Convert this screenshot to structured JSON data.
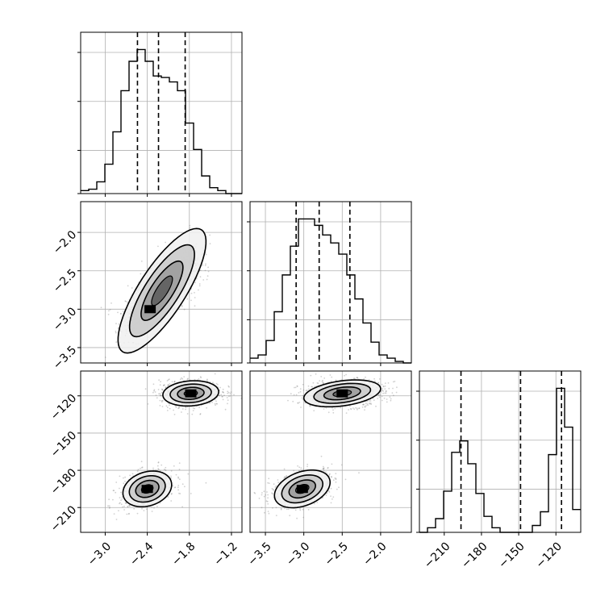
{
  "chart_data": {
    "type": "corner",
    "title": "",
    "parameters": [
      {
        "label": "",
        "range": [
          -3.35,
          -1.05
        ],
        "ticks": [
          -3.0,
          -2.4,
          -1.8,
          -1.2
        ],
        "tick_labels": [
          "−3.0",
          "−2.4",
          "−1.8",
          "−1.2"
        ],
        "quantiles": [
          -2.54,
          -2.24,
          -1.86
        ],
        "hist": {
          "bin_edges": [
            -3.35,
            -3.235,
            -3.12,
            -3.005,
            -2.89,
            -2.775,
            -2.66,
            -2.545,
            -2.43,
            -2.315,
            -2.2,
            -2.085,
            -1.97,
            -1.855,
            -1.74,
            -1.625,
            -1.51,
            -1.395,
            -1.28,
            -1.165,
            -1.05
          ],
          "counts": [
            2,
            3,
            8,
            20,
            42,
            70,
            90,
            98,
            90,
            80,
            79,
            76,
            70,
            48,
            30,
            12,
            4,
            2,
            0,
            0
          ]
        }
      },
      {
        "label": "",
        "range": [
          -3.7,
          -1.6
        ],
        "ticks": [
          -3.5,
          -3.0,
          -2.5,
          -2.0
        ],
        "tick_labels": [
          "−3.5",
          "−3.0",
          "−2.5",
          "−2.0"
        ],
        "quantiles": [
          -3.1,
          -2.8,
          -2.4
        ],
        "hist": {
          "bin_edges": [
            -3.7,
            -3.595,
            -3.49,
            -3.385,
            -3.28,
            -3.175,
            -3.07,
            -2.965,
            -2.86,
            -2.755,
            -2.65,
            -2.545,
            -2.44,
            -2.335,
            -2.23,
            -2.125,
            -2.02,
            -1.915,
            -1.81,
            -1.705,
            -1.6
          ],
          "counts": [
            3,
            5,
            14,
            32,
            55,
            73,
            90,
            90,
            86,
            80,
            75,
            68,
            55,
            40,
            25,
            13,
            5,
            3,
            1,
            0
          ]
        }
      },
      {
        "label": "",
        "range": [
          -230,
          -100
        ],
        "ticks": [
          -210,
          -180,
          -150,
          -120
        ],
        "tick_labels": [
          "−210",
          "−180",
          "−150",
          "−120"
        ],
        "quantiles": [
          -196.5,
          -148.5,
          -115.5
        ],
        "hist": {
          "bin_edges": [
            -230,
            -223.5,
            -217,
            -210.5,
            -204,
            -197.5,
            -191,
            -184.5,
            -178,
            -171.5,
            -165,
            -158.5,
            -152,
            -145.5,
            -139,
            -132.5,
            -126,
            -119.5,
            -113,
            -106.5,
            -100
          ],
          "counts": [
            0,
            2,
            6,
            18,
            35,
            40,
            30,
            17,
            7,
            2,
            0,
            0,
            0,
            0,
            3,
            9,
            34,
            63,
            46,
            10
          ]
        }
      }
    ],
    "pairs": [
      {
        "x_param": 0,
        "y_param": 1,
        "clusters": [
          {
            "x": [
              -2.36,
              -2.02
            ],
            "y": [
              -3.0,
              -2.52
            ],
            "sx": 0.2,
            "sy": 0.18,
            "corr": 0.62,
            "weight": 1.0
          }
        ]
      },
      {
        "x_param": 0,
        "y_param": 2,
        "clusters": [
          {
            "x": [
              -1.78
            ],
            "y": [
              -118
            ],
            "sx": 0.19,
            "sy": 4.8,
            "corr": 0.08,
            "weight": 0.55
          },
          {
            "x": [
              -2.4
            ],
            "y": [
              -195
            ],
            "sx": 0.17,
            "sy": 6.5,
            "corr": 0.35,
            "weight": 0.45
          }
        ]
      },
      {
        "x_param": 1,
        "y_param": 2,
        "clusters": [
          {
            "x": [
              -2.5
            ],
            "y": [
              -118
            ],
            "sx": 0.24,
            "sy": 4.8,
            "corr": 0.15,
            "weight": 0.55
          },
          {
            "x": [
              -3.02
            ],
            "y": [
              -195
            ],
            "sx": 0.18,
            "sy": 6.5,
            "corr": 0.4,
            "weight": 0.45
          }
        ]
      }
    ],
    "grid": true,
    "colors": {
      "line": "#000000",
      "grid": "#b0b0b0",
      "points": "#7a7a7a",
      "density_low": "#dcdcdc",
      "density_high": "#000000"
    }
  }
}
